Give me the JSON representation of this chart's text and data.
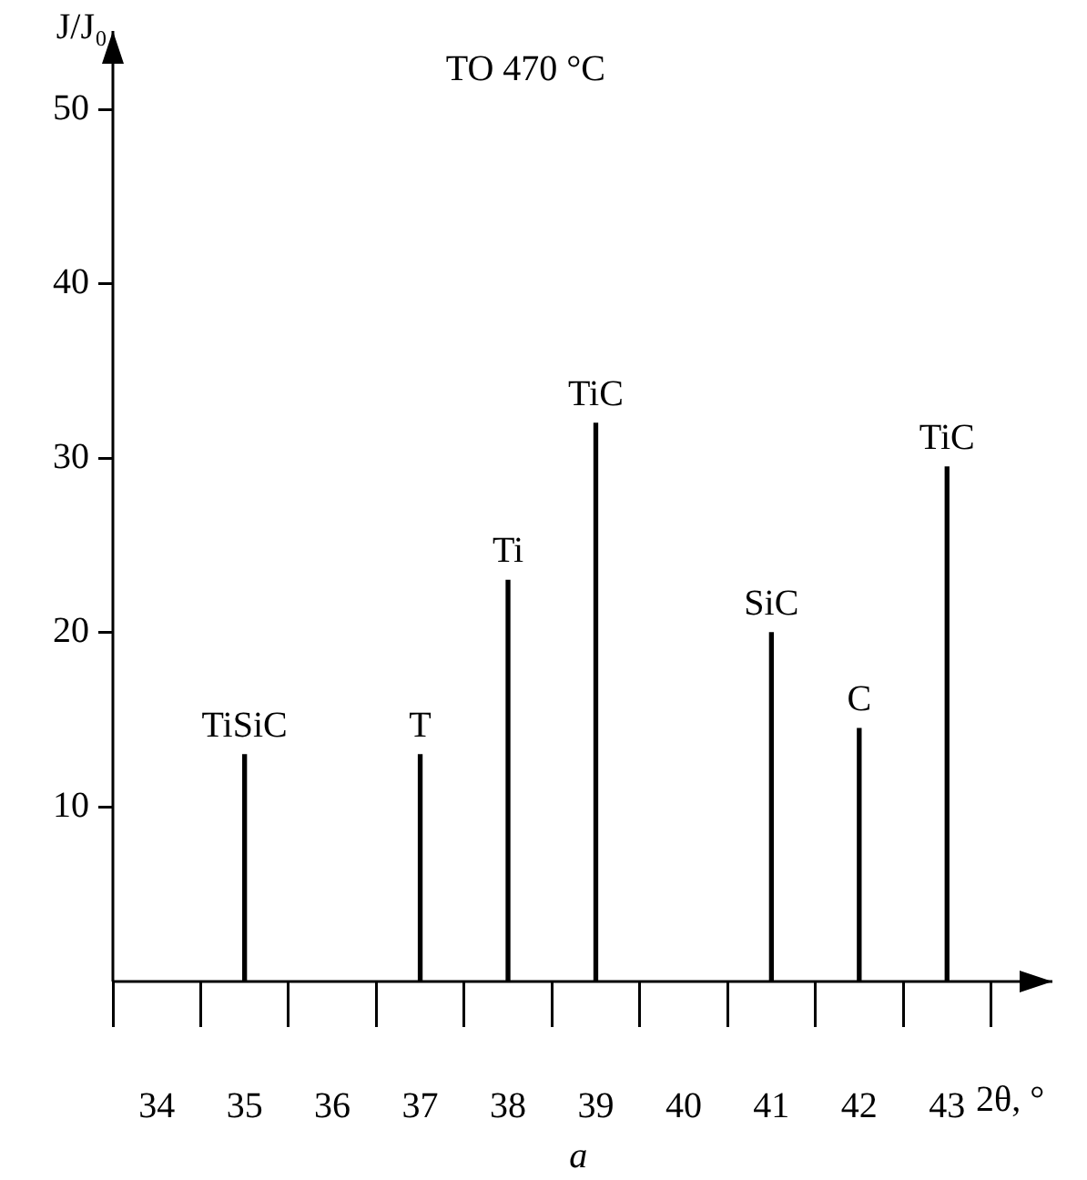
{
  "chart_data": {
    "type": "bar",
    "title": "TO 470 °C",
    "xlabel": "2θ, °",
    "ylabel": "J/J₀",
    "x": [
      35,
      37,
      38,
      39,
      41,
      42,
      43
    ],
    "values": [
      13,
      13,
      23,
      32,
      20,
      14.5,
      29.5
    ],
    "color": "#000000",
    "xlim": [
      33.5,
      44.2
    ],
    "ylim": [
      0,
      54.5
    ],
    "xticks": [
      34,
      35,
      36,
      37,
      38,
      39,
      40,
      41,
      42,
      43
    ],
    "yticks": [
      10,
      20,
      30,
      40,
      50
    ],
    "grid": false,
    "legend": false,
    "annotations": [
      {
        "text": "TiSiC",
        "x": 35,
        "y": 13
      },
      {
        "text": "T",
        "x": 37,
        "y": 13
      },
      {
        "text": "Ti",
        "x": 38,
        "y": 23
      },
      {
        "text": "TiC",
        "x": 39,
        "y": 32
      },
      {
        "text": "SiC",
        "x": 41,
        "y": 20
      },
      {
        "text": "C",
        "x": 42,
        "y": 14.5
      },
      {
        "text": "TiC",
        "x": 43,
        "y": 29.5
      },
      "a"
    ]
  }
}
